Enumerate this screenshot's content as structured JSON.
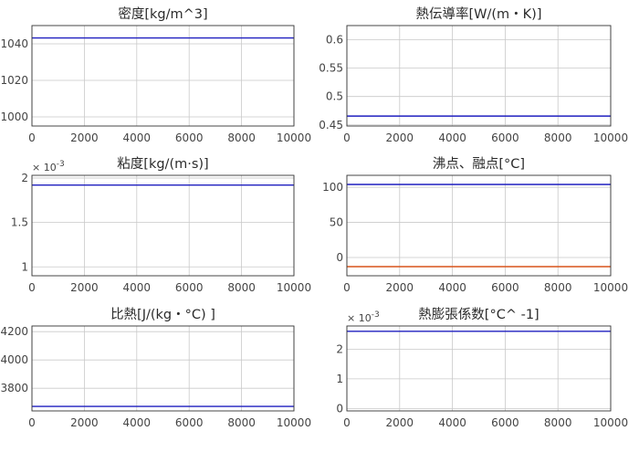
{
  "chart_data": [
    {
      "type": "line",
      "title": "密度[kg/m^3]",
      "exponent_label": "",
      "xlim": [
        0,
        10000
      ],
      "ylim": [
        995,
        1050
      ],
      "x_ticks": [
        "0",
        "2000",
        "4000",
        "6000",
        "8000",
        "10000"
      ],
      "y_ticks": [
        {
          "v": 1000,
          "label": "1000"
        },
        {
          "v": 1020,
          "label": "1020"
        },
        {
          "v": 1040,
          "label": "1040"
        }
      ],
      "grid": true,
      "series": [
        {
          "color": "#1f1fbf",
          "x": [
            0,
            10000
          ],
          "y": [
            1043.2,
            1043.2
          ]
        }
      ]
    },
    {
      "type": "line",
      "title": "熱伝導率[W/(m・K)]",
      "exponent_label": "",
      "xlim": [
        0,
        10000
      ],
      "ylim": [
        0.448,
        0.625
      ],
      "x_ticks": [
        "0",
        "2000",
        "4000",
        "6000",
        "8000",
        "10000"
      ],
      "y_ticks": [
        {
          "v": 0.45,
          "label": "0.45"
        },
        {
          "v": 0.5,
          "label": "0.5"
        },
        {
          "v": 0.55,
          "label": "0.55"
        },
        {
          "v": 0.6,
          "label": "0.6"
        }
      ],
      "grid": true,
      "series": [
        {
          "color": "#1f1fbf",
          "x": [
            0,
            10000
          ],
          "y": [
            0.4655,
            0.4655
          ]
        }
      ]
    },
    {
      "type": "line",
      "title": "粘度[kg/(m·s)]",
      "exponent_label": "× 10^-3",
      "xlim": [
        0,
        10000
      ],
      "ylim": [
        0.9,
        2.03
      ],
      "x_ticks": [
        "0",
        "2000",
        "4000",
        "6000",
        "8000",
        "10000"
      ],
      "y_ticks": [
        {
          "v": 1,
          "label": "1"
        },
        {
          "v": 1.5,
          "label": "1.5"
        },
        {
          "v": 2,
          "label": "2"
        }
      ],
      "grid": true,
      "series": [
        {
          "color": "#1f1fbf",
          "x": [
            0,
            10000
          ],
          "y": [
            1.92,
            1.92
          ]
        }
      ]
    },
    {
      "type": "line",
      "title": "沸点、融点[°C]",
      "exponent_label": "",
      "xlim": [
        0,
        10000
      ],
      "ylim": [
        -26,
        117
      ],
      "x_ticks": [
        "0",
        "2000",
        "4000",
        "6000",
        "8000",
        "10000"
      ],
      "y_ticks": [
        {
          "v": 0,
          "label": "0"
        },
        {
          "v": 50,
          "label": "50"
        },
        {
          "v": 100,
          "label": "100"
        }
      ],
      "grid": true,
      "series": [
        {
          "color": "#1f1fbf",
          "x": [
            0,
            10000
          ],
          "y": [
            104,
            104
          ]
        },
        {
          "color": "#d9541a",
          "x": [
            0,
            10000
          ],
          "y": [
            -13,
            -13
          ]
        }
      ]
    },
    {
      "type": "line",
      "title": "比熱[J/(kg・°C) ]",
      "exponent_label": "",
      "xlim": [
        0,
        10000
      ],
      "ylim": [
        3640,
        4240
      ],
      "x_ticks": [
        "0",
        "2000",
        "4000",
        "6000",
        "8000",
        "10000"
      ],
      "y_ticks": [
        {
          "v": 3800,
          "label": "3800"
        },
        {
          "v": 4000,
          "label": "4000"
        },
        {
          "v": 4200,
          "label": "4200"
        }
      ],
      "grid": true,
      "series": [
        {
          "color": "#1f1fbf",
          "x": [
            0,
            10000
          ],
          "y": [
            3672,
            3672
          ]
        }
      ]
    },
    {
      "type": "line",
      "title": "熱膨張係数[°C^ -1]",
      "exponent_label": "× 10^-3",
      "xlim": [
        0,
        10000
      ],
      "ylim": [
        -0.08,
        2.78
      ],
      "x_ticks": [
        "0",
        "2000",
        "4000",
        "6000",
        "8000",
        "10000"
      ],
      "y_ticks": [
        {
          "v": 0,
          "label": "0"
        },
        {
          "v": 1,
          "label": "1"
        },
        {
          "v": 2,
          "label": "2"
        }
      ],
      "grid": true,
      "series": [
        {
          "color": "#1f1fbf",
          "x": [
            0,
            10000
          ],
          "y": [
            2.6,
            2.6
          ]
        }
      ]
    }
  ]
}
